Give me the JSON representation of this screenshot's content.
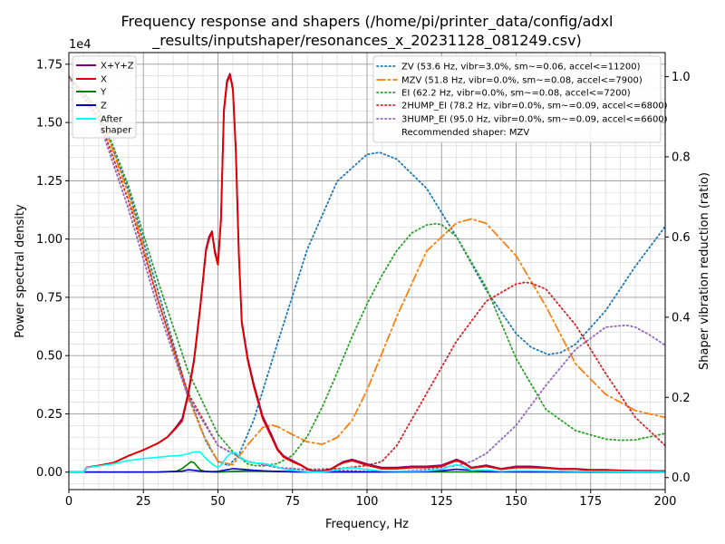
{
  "chart_data": {
    "type": "line",
    "title_lines": [
      "Frequency response and shapers (/home/pi/printer_data/config/adxl",
      "_results/inputshaper/resonances_x_20231128_081249.csv)"
    ],
    "xlabel": "Frequency, Hz",
    "ylabel": "Power spectral density",
    "y2label": "Shaper vibration reduction (ratio)",
    "y_offset_label": "1e4",
    "xlim": [
      0,
      200
    ],
    "ylim": [
      -750,
      18000
    ],
    "y2lim": [
      -0.03,
      1.06
    ],
    "x_ticks": [
      0,
      25,
      50,
      75,
      100,
      125,
      150,
      175,
      200
    ],
    "y_ticks": [
      0,
      2500,
      5000,
      7500,
      10000,
      12500,
      15000,
      17500
    ],
    "y_tick_labels": [
      "0.00",
      "0.25",
      "0.50",
      "0.75",
      "1.00",
      "1.25",
      "1.50",
      "1.75"
    ],
    "y2_ticks": [
      0.0,
      0.2,
      0.4,
      0.6,
      0.8,
      1.0
    ],
    "y2_tick_labels": [
      "0.0",
      "0.2",
      "0.4",
      "0.6",
      "0.8",
      "1.0"
    ],
    "grid": true,
    "legend_left_position": "upper-left",
    "legend_right_position": "upper-right",
    "psd_series": [
      {
        "name": "X+Y+Z",
        "color": "#800080",
        "style": "solid",
        "x": [
          0,
          5,
          6,
          10,
          15,
          20,
          25,
          30,
          33,
          36,
          38,
          40,
          42,
          44,
          46,
          47,
          48,
          49,
          50,
          51,
          52,
          53,
          54,
          55,
          56,
          57,
          58,
          60,
          62,
          65,
          68,
          70,
          72,
          75,
          78,
          80,
          82,
          85,
          88,
          90,
          92,
          95,
          100,
          105,
          110,
          115,
          120,
          125,
          128,
          130,
          132,
          135,
          140,
          145,
          150,
          155,
          160,
          165,
          170,
          175,
          180,
          185,
          190,
          195,
          200
        ],
        "y": [
          0,
          0,
          200,
          280,
          400,
          700,
          950,
          1250,
          1500,
          1950,
          2300,
          3400,
          4900,
          7100,
          9600,
          10100,
          10350,
          9500,
          9000,
          10900,
          15600,
          16800,
          17100,
          16500,
          13900,
          9500,
          6500,
          4900,
          3800,
          2400,
          1600,
          1000,
          700,
          500,
          300,
          150,
          50,
          50,
          150,
          300,
          450,
          550,
          350,
          200,
          200,
          250,
          250,
          300,
          450,
          550,
          450,
          200,
          300,
          150,
          250,
          250,
          200,
          150,
          150,
          100,
          100,
          80,
          60,
          60,
          50
        ]
      },
      {
        "name": "X",
        "color": "#e00000",
        "style": "solid",
        "x": [
          0,
          5,
          6,
          10,
          15,
          20,
          25,
          30,
          33,
          36,
          38,
          40,
          42,
          44,
          46,
          47,
          48,
          49,
          50,
          51,
          52,
          53,
          54,
          55,
          56,
          57,
          58,
          60,
          62,
          65,
          68,
          70,
          72,
          75,
          78,
          80,
          82,
          85,
          88,
          90,
          92,
          95,
          100,
          105,
          110,
          115,
          120,
          125,
          128,
          130,
          132,
          135,
          140,
          145,
          150,
          155,
          160,
          165,
          170,
          175,
          180,
          185,
          190,
          195,
          200
        ],
        "y": [
          0,
          0,
          200,
          280,
          400,
          700,
          950,
          1250,
          1500,
          1900,
          2200,
          3300,
          4800,
          7000,
          9500,
          10000,
          10300,
          9400,
          8900,
          10800,
          15500,
          16700,
          17050,
          16400,
          13800,
          9400,
          6400,
          4800,
          3700,
          2300,
          1500,
          950,
          650,
          450,
          280,
          130,
          40,
          40,
          130,
          280,
          400,
          500,
          300,
          150,
          150,
          200,
          200,
          250,
          400,
          500,
          400,
          180,
          250,
          130,
          200,
          200,
          180,
          130,
          130,
          80,
          80,
          60,
          50,
          50,
          40
        ]
      },
      {
        "name": "Y",
        "color": "#008000",
        "style": "solid",
        "x": [
          0,
          30,
          36,
          38,
          40,
          41,
          42,
          43,
          44,
          46,
          50,
          55,
          60,
          70,
          80,
          100,
          120,
          130,
          150,
          200
        ],
        "y": [
          0,
          0,
          30,
          150,
          350,
          450,
          400,
          250,
          100,
          20,
          0,
          30,
          50,
          30,
          20,
          10,
          10,
          10,
          5,
          0
        ]
      },
      {
        "name": "Z",
        "color": "#0000cc",
        "style": "solid",
        "x": [
          0,
          20,
          30,
          38,
          40,
          42,
          44,
          48,
          50,
          52,
          55,
          58,
          62,
          66,
          70,
          75,
          80,
          100,
          120,
          125,
          130,
          135,
          140,
          150,
          160,
          180,
          200
        ],
        "y": [
          0,
          0,
          10,
          40,
          100,
          80,
          40,
          20,
          30,
          80,
          150,
          120,
          80,
          50,
          30,
          10,
          5,
          5,
          20,
          60,
          120,
          80,
          20,
          30,
          20,
          10,
          0
        ]
      },
      {
        "name": "After\nshaper",
        "color": "#00ffff",
        "style": "solid",
        "x": [
          0,
          5,
          6,
          10,
          15,
          20,
          25,
          30,
          33,
          36,
          38,
          40,
          42,
          44,
          46,
          47,
          48,
          49,
          50,
          51,
          52,
          53,
          54,
          55,
          56,
          57,
          58,
          60,
          62,
          65,
          68,
          70,
          72,
          75,
          78,
          80,
          82,
          85,
          88,
          90,
          92,
          95,
          100,
          105,
          110,
          115,
          120,
          125,
          128,
          130,
          132,
          135,
          140,
          145,
          150,
          155,
          160,
          165,
          170,
          175,
          180,
          185,
          190,
          195,
          200
        ],
        "y": [
          0,
          0,
          190,
          260,
          360,
          500,
          580,
          640,
          680,
          700,
          730,
          790,
          870,
          870,
          580,
          470,
          350,
          260,
          210,
          290,
          490,
          660,
          780,
          840,
          830,
          700,
          580,
          450,
          390,
          380,
          300,
          220,
          130,
          80,
          40,
          20,
          10,
          10,
          50,
          100,
          160,
          190,
          110,
          50,
          40,
          40,
          50,
          120,
          260,
          320,
          240,
          90,
          90,
          40,
          60,
          60,
          50,
          40,
          30,
          30,
          25,
          20,
          15,
          15,
          10
        ]
      }
    ],
    "shaper_series": [
      {
        "name": "ZV (53.6 Hz, vibr=3.0%, sm~=0.06, accel<=11200)",
        "color": "#1f77b4",
        "style": "dotted",
        "x": [
          0,
          10,
          20,
          30,
          40,
          46,
          50,
          53.6,
          57,
          62,
          70,
          80,
          90,
          100,
          104.2,
          110,
          120,
          130,
          140,
          150,
          155,
          160.8,
          165,
          170,
          180,
          190,
          200
        ],
        "y": [
          1.0,
          0.913,
          0.717,
          0.462,
          0.208,
          0.09,
          0.04,
          0.03,
          0.056,
          0.144,
          0.336,
          0.57,
          0.739,
          0.806,
          0.811,
          0.794,
          0.721,
          0.601,
          0.467,
          0.359,
          0.325,
          0.307,
          0.312,
          0.333,
          0.416,
          0.527,
          0.626
        ]
      },
      {
        "name": "MZV (51.8 Hz, vibr=0.0%, sm~=0.08, accel<=7900)",
        "color": "#ff7f0e",
        "style": "dashdot",
        "x": [
          0,
          10,
          20,
          30,
          40,
          45,
          50,
          55,
          60,
          65,
          68,
          70,
          75,
          80,
          85,
          90,
          95,
          100,
          110,
          120,
          130,
          135,
          140,
          150,
          160,
          170,
          180,
          190,
          200
        ],
        "y": [
          1.0,
          0.916,
          0.707,
          0.442,
          0.2,
          0.108,
          0.04,
          0.032,
          0.082,
          0.125,
          0.131,
          0.127,
          0.107,
          0.089,
          0.083,
          0.1,
          0.143,
          0.218,
          0.402,
          0.565,
          0.635,
          0.645,
          0.634,
          0.553,
          0.427,
          0.283,
          0.208,
          0.167,
          0.15
        ]
      },
      {
        "name": "EI (62.2 Hz, vibr=0.0%, sm~=0.08, accel<=7200)",
        "color": "#2ca02c",
        "style": "dotted",
        "x": [
          0,
          10,
          20,
          30,
          40,
          50,
          55,
          60,
          62.2,
          65,
          70,
          75,
          80,
          85,
          90,
          95,
          100,
          105,
          110,
          115,
          120,
          123,
          125,
          130,
          140,
          150,
          160,
          170,
          180,
          185,
          190,
          200
        ],
        "y": [
          1.0,
          0.92,
          0.727,
          0.487,
          0.265,
          0.108,
          0.064,
          0.034,
          0.03,
          0.029,
          0.035,
          0.055,
          0.103,
          0.176,
          0.262,
          0.352,
          0.433,
          0.504,
          0.566,
          0.61,
          0.63,
          0.633,
          0.631,
          0.601,
          0.474,
          0.297,
          0.17,
          0.117,
          0.096,
          0.093,
          0.094,
          0.11
        ]
      },
      {
        "name": "2HUMP_EI (78.2 Hz, vibr=0.0%, sm~=0.09, accel<=6800)",
        "color": "#d62728",
        "style": "dotted",
        "x": [
          0,
          10,
          20,
          30,
          40,
          50,
          60,
          70,
          78.2,
          85,
          90,
          100,
          105,
          110,
          120,
          130,
          140,
          150,
          153,
          155,
          160,
          170,
          180,
          190,
          200
        ],
        "y": [
          1.0,
          0.9,
          0.69,
          0.44,
          0.21,
          0.08,
          0.04,
          0.025,
          0.02,
          0.021,
          0.022,
          0.03,
          0.04,
          0.08,
          0.21,
          0.34,
          0.44,
          0.483,
          0.487,
          0.485,
          0.47,
          0.38,
          0.26,
          0.15,
          0.08
        ]
      },
      {
        "name": "3HUMP_EI (95.0 Hz, vibr=0.0%, sm~=0.09, accel<=6600)",
        "color": "#9467bd",
        "style": "dotted",
        "x": [
          0,
          10,
          20,
          30,
          40,
          50,
          60,
          70,
          80,
          90,
          95,
          100,
          110,
          120,
          130,
          135,
          140,
          150,
          160,
          170,
          180,
          187,
          190,
          195,
          200
        ],
        "y": [
          1.0,
          0.89,
          0.67,
          0.42,
          0.2,
          0.08,
          0.04,
          0.025,
          0.02,
          0.018,
          0.017,
          0.015,
          0.015,
          0.02,
          0.03,
          0.04,
          0.06,
          0.13,
          0.23,
          0.32,
          0.375,
          0.38,
          0.375,
          0.355,
          0.33
        ]
      }
    ],
    "recommended_text": "Recommended shaper: MZV"
  }
}
